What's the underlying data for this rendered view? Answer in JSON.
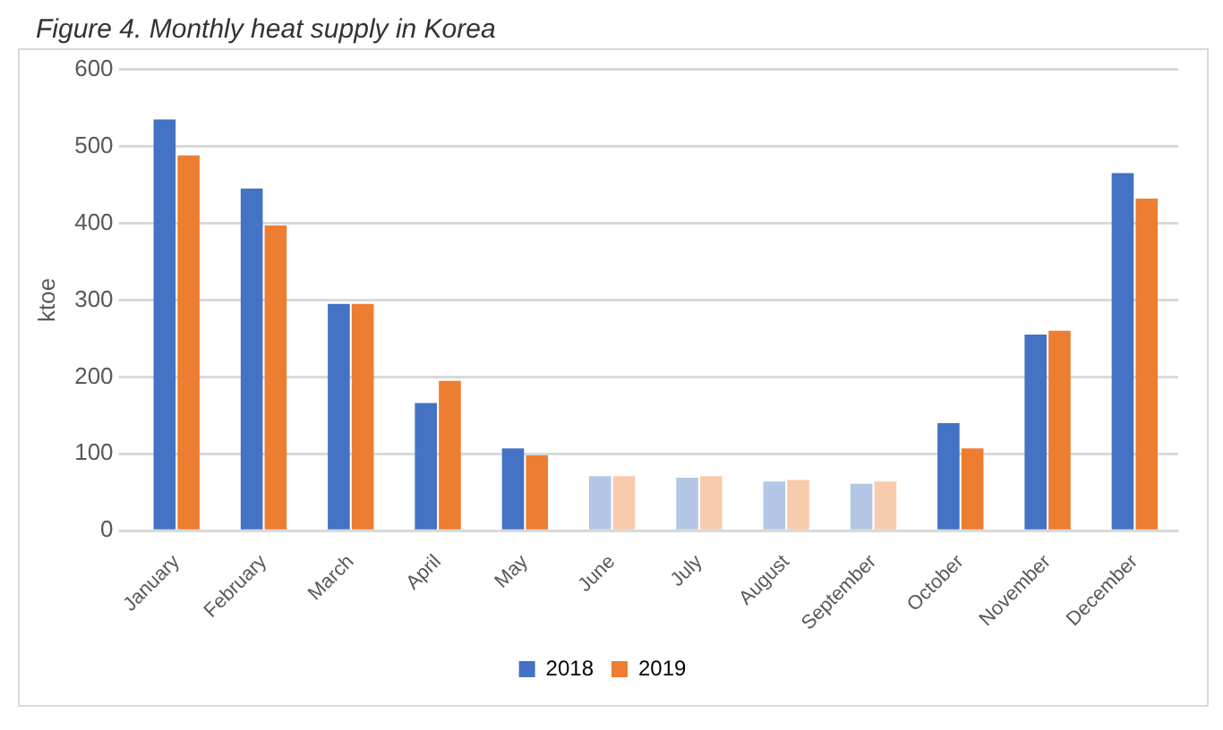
{
  "chart_data": {
    "type": "bar",
    "title": "Figure 4. Monthly heat supply in Korea",
    "ylabel": "ktoe",
    "categories": [
      "January",
      "February",
      "March",
      "April",
      "May",
      "June",
      "July",
      "August",
      "September",
      "October",
      "November",
      "December"
    ],
    "series": [
      {
        "name": "2018",
        "color": "#4472c4",
        "colors": [
          "#4472c4",
          "#4472c4",
          "#4472c4",
          "#4472c4",
          "#4472c4",
          "#b4c7e7",
          "#b4c7e7",
          "#b4c7e7",
          "#b4c7e7",
          "#4472c4",
          "#4472c4",
          "#4472c4"
        ],
        "values": [
          535,
          445,
          295,
          166,
          107,
          71,
          69,
          64,
          61,
          140,
          255,
          465
        ]
      },
      {
        "name": "2019",
        "color": "#ed7d31",
        "colors": [
          "#ed7d31",
          "#ed7d31",
          "#ed7d31",
          "#ed7d31",
          "#ed7d31",
          "#f8cbad",
          "#f8cbad",
          "#f8cbad",
          "#f8cbad",
          "#ed7d31",
          "#ed7d31",
          "#ed7d31"
        ],
        "values": [
          488,
          397,
          295,
          195,
          98,
          71,
          71,
          66,
          64,
          107,
          260,
          432
        ]
      }
    ],
    "ylim": [
      0,
      600
    ],
    "yticks": [
      0,
      100,
      200,
      300,
      400,
      500,
      600
    ],
    "grid": "y",
    "legend": "bottom"
  }
}
